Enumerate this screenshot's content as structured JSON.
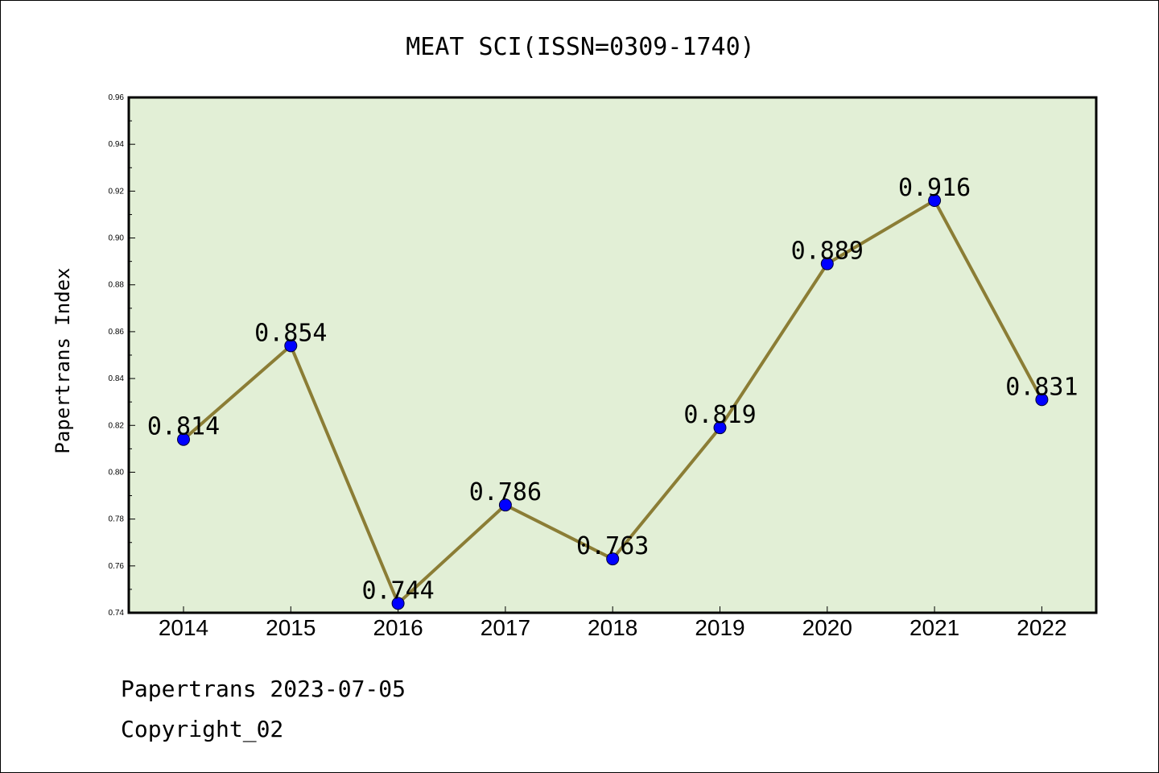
{
  "chart_data": {
    "type": "line",
    "title": "MEAT SCI(ISSN=0309-1740)",
    "xlabel": "",
    "ylabel": "Papertrans Index",
    "categories": [
      "2014",
      "2015",
      "2016",
      "2017",
      "2018",
      "2019",
      "2020",
      "2021",
      "2022"
    ],
    "series": [
      {
        "values": [
          0.814,
          0.854,
          0.744,
          0.786,
          0.763,
          0.819,
          0.889,
          0.916,
          0.831
        ],
        "labels": [
          "0.814",
          "0.854",
          "0.744",
          "0.786",
          "0.763",
          "0.819",
          "0.889",
          "0.916",
          "0.831"
        ]
      }
    ],
    "ylim": [
      0.74,
      0.96
    ],
    "yticks": [
      "0.74",
      "0.76",
      "0.78",
      "0.80",
      "0.82",
      "0.84",
      "0.86",
      "0.88",
      "0.90",
      "0.92",
      "0.94",
      "0.96"
    ],
    "grid": false,
    "plot_background": "#e2efd6",
    "line_color": "#8b7d35",
    "marker_color": "#0000ff"
  },
  "footer": {
    "line1": "Papertrans 2023-07-05",
    "line2": "Copyright_02"
  }
}
